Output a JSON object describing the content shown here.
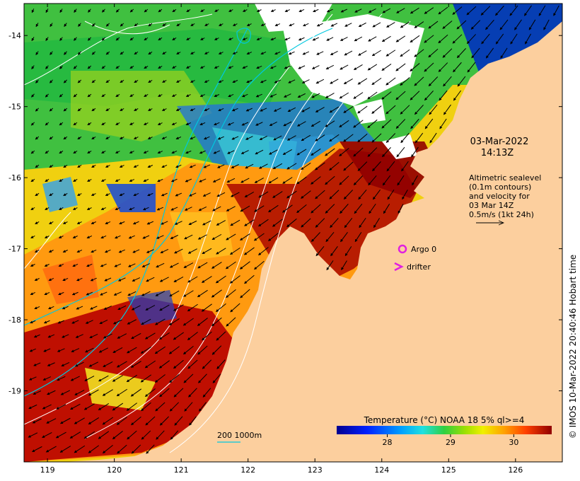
{
  "map": {
    "lon_range": [
      118.65,
      126.7
    ],
    "lat_range": [
      -20.0,
      -13.55
    ],
    "lon_ticks": [
      119,
      120,
      121,
      122,
      123,
      124,
      125,
      126
    ],
    "lat_ticks": [
      -14,
      -15,
      -16,
      -17,
      -18,
      -19
    ],
    "lon_tick_labels": [
      "119",
      "120",
      "121",
      "122",
      "123",
      "124",
      "125",
      "126"
    ],
    "lat_tick_labels": [
      "-14",
      "-15",
      "-16",
      "-17",
      "-18",
      "-19"
    ]
  },
  "annotations": {
    "date": "03-Mar-2022",
    "time": "14:13Z",
    "altimetry_lines": [
      "Altimetric sealevel",
      "(0.1m contours)",
      "and velocity for",
      "03 Mar 14Z",
      "0.5m/s (1kt 24h)"
    ],
    "argo_label": "Argo 0",
    "drifter_label": "drifter",
    "depth_label": "200  1000m",
    "credit": "© IMOS 10-Mar-2022 20:40:46 Hobart time"
  },
  "colorbar": {
    "title": "Temperature (°C) NOAA 18 5% ql>=4",
    "range": [
      27.2,
      30.6
    ],
    "ticks": [
      28,
      29,
      30
    ],
    "tick_labels": [
      "28",
      "29",
      "30"
    ]
  },
  "colors": {
    "land": "#fccf9e",
    "cloud": "#ffffff",
    "argo": "#e020e0",
    "depth_contour": "#00c8e0",
    "ssh_contour": "#ffffff"
  }
}
